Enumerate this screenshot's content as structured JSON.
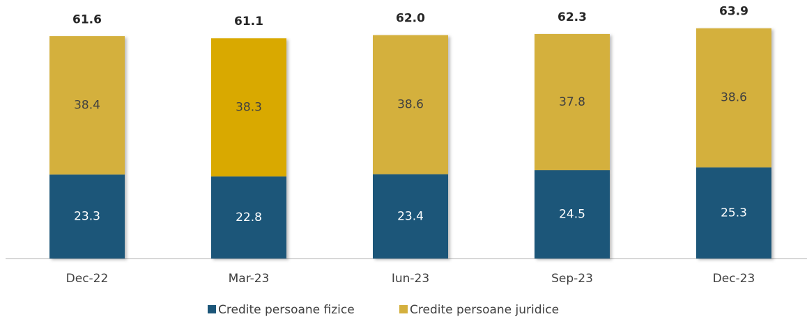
{
  "chart_data": {
    "type": "stacked_bar",
    "categories": [
      "Dec-22",
      "Mar-23",
      "Iun-23",
      "Sep-23",
      "Dec-23"
    ],
    "series": [
      {
        "name": "Credite persoane fizice",
        "color": "#1c5679",
        "values": [
          23.3,
          22.8,
          23.4,
          24.5,
          25.3
        ]
      },
      {
        "name": "Credite persoane juridice",
        "color": "#d4b03e",
        "colors": [
          "#d4b03e",
          "#d9a900",
          "#d4b03e",
          "#d4b03e",
          "#d4b03e"
        ],
        "values": [
          38.4,
          38.3,
          38.6,
          37.8,
          38.6
        ]
      }
    ],
    "totals": [
      61.6,
      61.1,
      62,
      62.3,
      63.9
    ],
    "total_labels": [
      "61.6",
      "61.1",
      "62.0",
      "62.3",
      "63.9"
    ],
    "ylim": [
      0,
      70
    ]
  }
}
